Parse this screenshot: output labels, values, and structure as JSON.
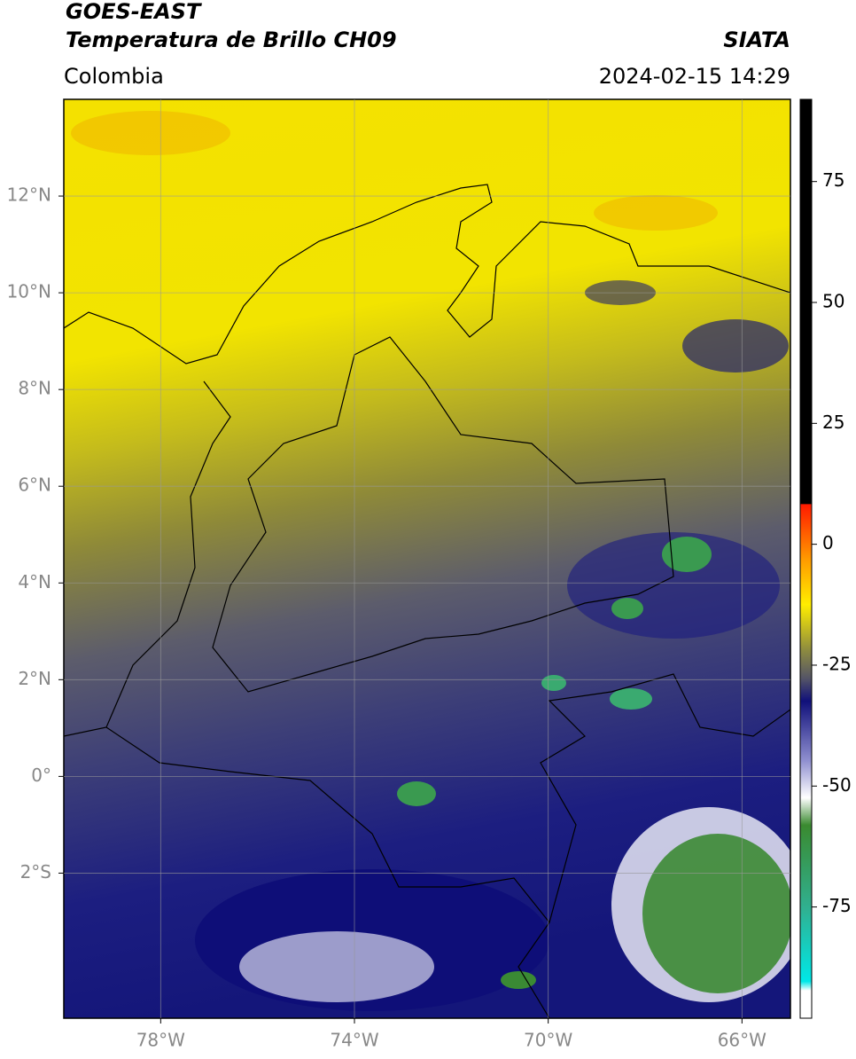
{
  "header": {
    "satellite": "GOES-EAST",
    "product": "Temperatura de Brillo CH09",
    "source": "SIATA",
    "region": "Colombia",
    "datetime": "2024-02-15 14:29"
  },
  "map": {
    "lonlim": [
      -80,
      -65
    ],
    "latlim": [
      -5,
      14
    ],
    "grid": true,
    "lonticks": [
      {
        "value": -78,
        "label": "78°W"
      },
      {
        "value": -74,
        "label": "74°W"
      },
      {
        "value": -70,
        "label": "70°W"
      },
      {
        "value": -66,
        "label": "66°W"
      }
    ],
    "latticks": [
      {
        "value": 12,
        "label": "12°N"
      },
      {
        "value": 10,
        "label": "10°N"
      },
      {
        "value": 8,
        "label": "8°N"
      },
      {
        "value": 6,
        "label": "6°N"
      },
      {
        "value": 4,
        "label": "4°N"
      },
      {
        "value": 2,
        "label": "2°N"
      },
      {
        "value": 0,
        "label": "0°"
      },
      {
        "value": -2,
        "label": "2°S"
      }
    ]
  },
  "colorbar": {
    "lim": [
      -98,
      92
    ],
    "ticks": [
      75,
      50,
      25,
      0,
      -25,
      -50,
      -75
    ]
  }
}
